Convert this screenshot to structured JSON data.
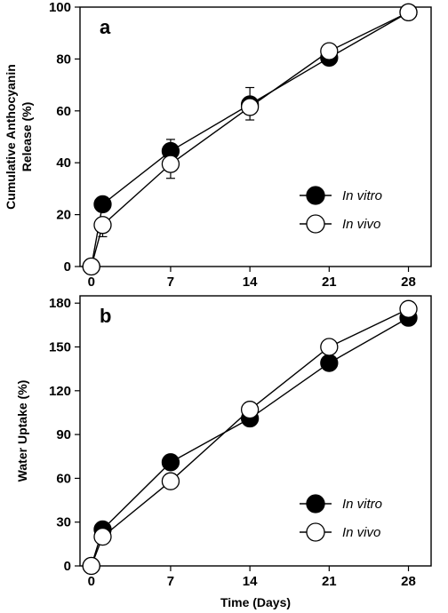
{
  "chart_data": [
    {
      "type": "line",
      "panel_label": "a",
      "ylabel_lines": [
        "Cumulative Anthocyanin",
        "Release (%)"
      ],
      "xlabel": "",
      "x_ticks": [
        0,
        7,
        14,
        21,
        28
      ],
      "y_ticks": [
        0,
        20,
        40,
        60,
        80,
        100
      ],
      "xlim": [
        -1,
        30
      ],
      "ylim": [
        0,
        100
      ],
      "legend_position": "lower-right",
      "series": [
        {
          "name": "In vitro",
          "marker": "filled-circle",
          "color": "#000000",
          "x": [
            0,
            1,
            7,
            14,
            21,
            28
          ],
          "y": [
            0,
            24,
            44.5,
            62.5,
            80.5,
            98
          ],
          "err": [
            0,
            0,
            4.5,
            6.5,
            3,
            0
          ]
        },
        {
          "name": "In vivo",
          "marker": "open-circle",
          "color": "#000000",
          "x": [
            0,
            1,
            7,
            14,
            21,
            28
          ],
          "y": [
            0,
            16,
            39.5,
            61.5,
            83,
            98
          ],
          "err": [
            0,
            4.5,
            5.5,
            5,
            0,
            0
          ]
        }
      ]
    },
    {
      "type": "line",
      "panel_label": "b",
      "ylabel_lines": [
        "Water Uptake (%)"
      ],
      "xlabel": "Time (Days)",
      "x_ticks": [
        0,
        7,
        14,
        21,
        28
      ],
      "y_ticks": [
        0,
        30,
        60,
        90,
        120,
        150,
        180
      ],
      "xlim": [
        -1,
        30
      ],
      "ylim": [
        0,
        185
      ],
      "legend_position": "lower-right",
      "series": [
        {
          "name": "In vitro",
          "marker": "filled-circle",
          "color": "#000000",
          "x": [
            0,
            1,
            7,
            14,
            21,
            28
          ],
          "y": [
            0,
            25,
            71,
            101,
            139,
            170
          ],
          "err": [
            0,
            0,
            0,
            0,
            10,
            0
          ]
        },
        {
          "name": "In vivo",
          "marker": "open-circle",
          "color": "#000000",
          "x": [
            0,
            1,
            7,
            14,
            21,
            28
          ],
          "y": [
            0,
            20,
            58,
            107,
            150,
            176
          ],
          "err": [
            0,
            0,
            0,
            9,
            0,
            0
          ]
        }
      ]
    }
  ]
}
